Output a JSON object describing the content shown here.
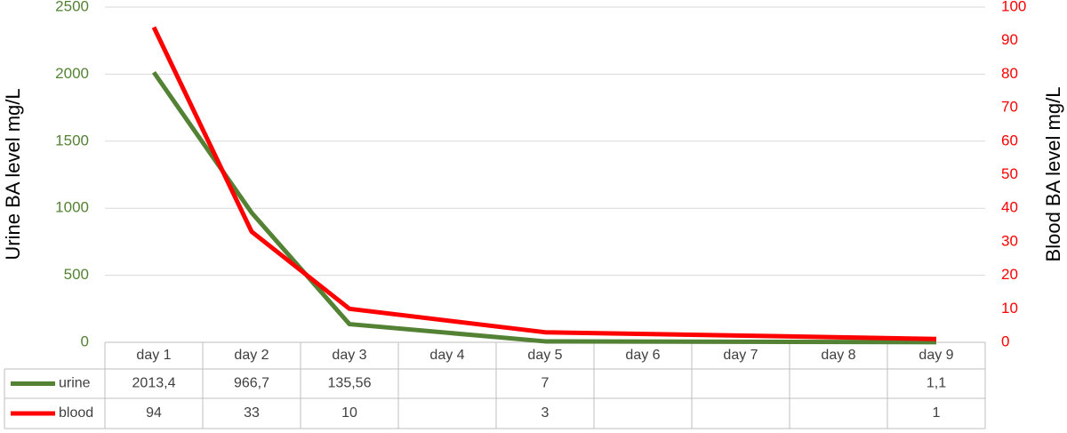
{
  "chart_data": {
    "type": "line",
    "categories": [
      "day 1",
      "day 2",
      "day 3",
      "day 4",
      "day 5",
      "day 6",
      "day 7",
      "day 8",
      "day 9"
    ],
    "series": [
      {
        "name": "urine",
        "color": "#548235",
        "axis": "y",
        "values": [
          2013.4,
          966.7,
          135.56,
          null,
          7,
          null,
          null,
          null,
          1.1
        ],
        "value_labels": [
          "2013,4",
          "966,7",
          "135,56",
          null,
          null,
          null,
          null,
          null,
          "1,1"
        ]
      },
      {
        "name": "blood",
        "color": "#ff0000",
        "axis": "y2",
        "values": [
          94,
          33,
          10,
          null,
          3,
          null,
          null,
          null,
          1
        ]
      }
    ],
    "y_label": "Urine BA level mg/L",
    "y2_label": "Blood BA level mg/L",
    "ylim": [
      0,
      2500
    ],
    "yticks": [
      0,
      500,
      1000,
      1500,
      2000,
      2500
    ],
    "ytick_color": "#548235",
    "y2lim": [
      0,
      100
    ],
    "y2ticks": [
      0,
      10,
      20,
      30,
      40,
      50,
      60,
      70,
      80,
      90,
      100
    ],
    "y2tick_color": "#ff0000",
    "grid": true,
    "span_gaps": true,
    "data_table": true
  }
}
